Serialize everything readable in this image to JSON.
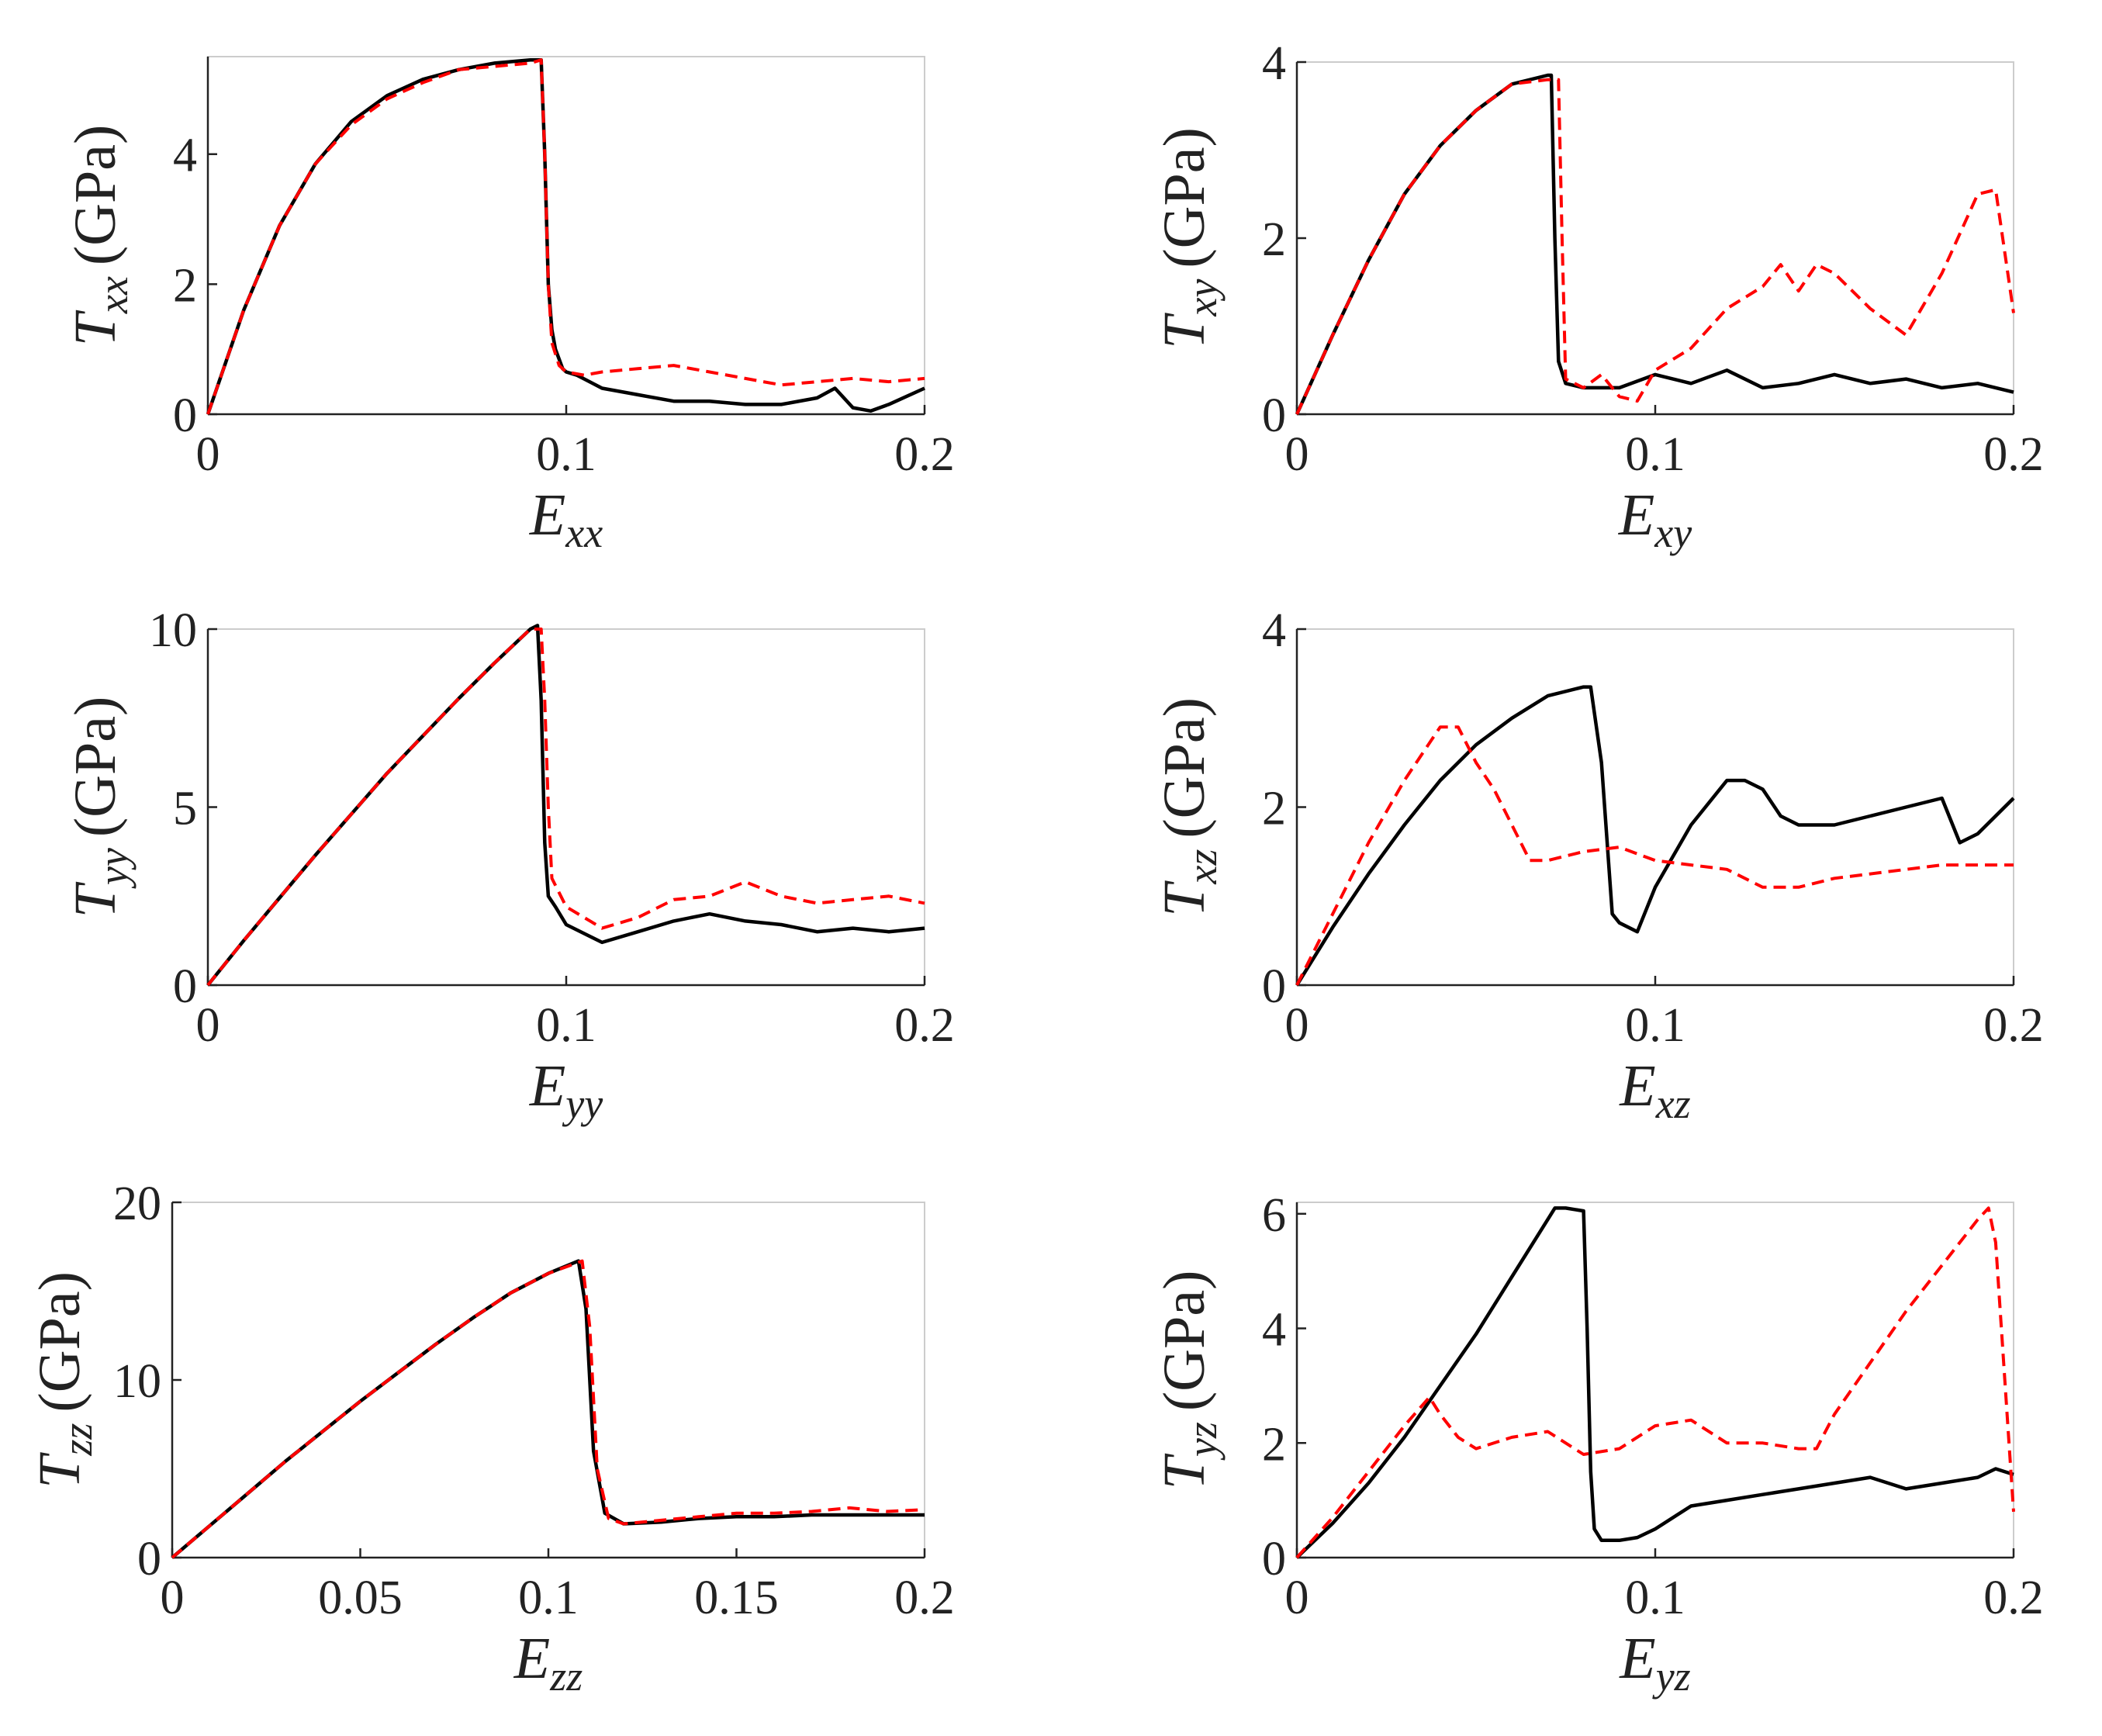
{
  "colors": {
    "solid": "#000000",
    "dashed": "#ff0000"
  },
  "chart_data": [
    {
      "type": "line",
      "xlabel": {
        "main": "E",
        "sub": "xx"
      },
      "ylabel": {
        "main": "T",
        "sub": "xx",
        "unit": "(GPa)"
      },
      "xlim": [
        0,
        0.2
      ],
      "ylim": [
        0,
        5.5
      ],
      "xticks": [
        0,
        0.1,
        0.2
      ],
      "xtick_labels": [
        "0",
        "0.1",
        "0.2"
      ],
      "yticks": [
        0,
        2,
        4
      ],
      "ytick_labels": [
        "0",
        "2",
        "4"
      ],
      "series": [
        {
          "name": "solid",
          "style": "solid",
          "x": [
            0,
            0.01,
            0.02,
            0.03,
            0.04,
            0.05,
            0.06,
            0.07,
            0.08,
            0.09,
            0.093,
            0.094,
            0.095,
            0.096,
            0.097,
            0.099,
            0.1,
            0.103,
            0.11,
            0.12,
            0.13,
            0.14,
            0.15,
            0.16,
            0.17,
            0.175,
            0.18,
            0.185,
            0.19,
            0.2
          ],
          "y": [
            0,
            1.6,
            2.9,
            3.85,
            4.5,
            4.9,
            5.15,
            5.3,
            5.4,
            5.45,
            5.45,
            4.0,
            2.0,
            1.3,
            1.0,
            0.7,
            0.65,
            0.6,
            0.4,
            0.3,
            0.2,
            0.2,
            0.15,
            0.15,
            0.25,
            0.4,
            0.1,
            0.05,
            0.15,
            0.4
          ]
        },
        {
          "name": "dashed",
          "style": "dashed",
          "x": [
            0,
            0.01,
            0.02,
            0.03,
            0.04,
            0.05,
            0.06,
            0.07,
            0.08,
            0.09,
            0.093,
            0.094,
            0.095,
            0.096,
            0.098,
            0.1,
            0.105,
            0.11,
            0.12,
            0.13,
            0.14,
            0.15,
            0.16,
            0.17,
            0.18,
            0.19,
            0.2
          ],
          "y": [
            0,
            1.6,
            2.9,
            3.85,
            4.45,
            4.85,
            5.1,
            5.3,
            5.35,
            5.4,
            5.45,
            4.0,
            2.0,
            1.1,
            0.75,
            0.65,
            0.6,
            0.65,
            0.7,
            0.75,
            0.65,
            0.55,
            0.45,
            0.5,
            0.55,
            0.5,
            0.55
          ]
        }
      ]
    },
    {
      "type": "line",
      "xlabel": {
        "main": "E",
        "sub": "xy"
      },
      "ylabel": {
        "main": "T",
        "sub": "xy",
        "unit": "(GPa)"
      },
      "xlim": [
        0,
        0.2
      ],
      "ylim": [
        0,
        4
      ],
      "xticks": [
        0,
        0.1,
        0.2
      ],
      "xtick_labels": [
        "0",
        "0.1",
        "0.2"
      ],
      "yticks": [
        0,
        2,
        4
      ],
      "ytick_labels": [
        "0",
        "2",
        "4"
      ],
      "series": [
        {
          "name": "solid",
          "style": "solid",
          "x": [
            0,
            0.01,
            0.02,
            0.03,
            0.04,
            0.05,
            0.06,
            0.07,
            0.071,
            0.072,
            0.073,
            0.075,
            0.08,
            0.09,
            0.1,
            0.11,
            0.12,
            0.13,
            0.14,
            0.15,
            0.16,
            0.17,
            0.18,
            0.19,
            0.2
          ],
          "y": [
            0,
            0.9,
            1.75,
            2.5,
            3.05,
            3.45,
            3.75,
            3.85,
            3.85,
            2.0,
            0.6,
            0.35,
            0.3,
            0.3,
            0.45,
            0.35,
            0.5,
            0.3,
            0.35,
            0.45,
            0.35,
            0.4,
            0.3,
            0.35,
            0.25
          ]
        },
        {
          "name": "dashed",
          "style": "dashed",
          "x": [
            0,
            0.01,
            0.02,
            0.03,
            0.04,
            0.05,
            0.06,
            0.07,
            0.073,
            0.074,
            0.075,
            0.08,
            0.085,
            0.09,
            0.095,
            0.1,
            0.11,
            0.12,
            0.13,
            0.135,
            0.14,
            0.145,
            0.15,
            0.16,
            0.17,
            0.18,
            0.19,
            0.195,
            0.2
          ],
          "y": [
            0,
            0.9,
            1.75,
            2.5,
            3.05,
            3.45,
            3.75,
            3.8,
            3.8,
            2.0,
            0.4,
            0.3,
            0.45,
            0.2,
            0.15,
            0.5,
            0.75,
            1.2,
            1.45,
            1.7,
            1.4,
            1.7,
            1.6,
            1.2,
            0.9,
            1.6,
            2.5,
            2.55,
            1.15
          ]
        }
      ]
    },
    {
      "type": "line",
      "xlabel": {
        "main": "E",
        "sub": "yy"
      },
      "ylabel": {
        "main": "T",
        "sub": "yy",
        "unit": "(GPa)"
      },
      "xlim": [
        0,
        0.2
      ],
      "ylim": [
        0,
        10
      ],
      "xticks": [
        0,
        0.1,
        0.2
      ],
      "xtick_labels": [
        "0",
        "0.1",
        "0.2"
      ],
      "yticks": [
        0,
        5,
        10
      ],
      "ytick_labels": [
        "0",
        "5",
        "10"
      ],
      "series": [
        {
          "name": "solid",
          "style": "solid",
          "x": [
            0,
            0.01,
            0.02,
            0.03,
            0.04,
            0.05,
            0.06,
            0.07,
            0.08,
            0.09,
            0.092,
            0.093,
            0.094,
            0.095,
            0.097,
            0.1,
            0.11,
            0.12,
            0.13,
            0.14,
            0.15,
            0.16,
            0.17,
            0.18,
            0.19,
            0.2
          ],
          "y": [
            0,
            1.25,
            2.45,
            3.65,
            4.8,
            5.95,
            7.0,
            8.05,
            9.05,
            10.0,
            10.1,
            8.0,
            4.0,
            2.5,
            2.2,
            1.7,
            1.2,
            1.5,
            1.8,
            2.0,
            1.8,
            1.7,
            1.5,
            1.6,
            1.5,
            1.6
          ]
        },
        {
          "name": "dashed",
          "style": "dashed",
          "x": [
            0,
            0.01,
            0.02,
            0.03,
            0.04,
            0.05,
            0.06,
            0.07,
            0.08,
            0.09,
            0.093,
            0.094,
            0.095,
            0.096,
            0.098,
            0.1,
            0.11,
            0.12,
            0.13,
            0.14,
            0.15,
            0.16,
            0.17,
            0.18,
            0.19,
            0.2
          ],
          "y": [
            0,
            1.25,
            2.45,
            3.65,
            4.8,
            5.95,
            7.0,
            8.05,
            9.05,
            10.0,
            10.0,
            8.0,
            5.0,
            3.0,
            2.6,
            2.2,
            1.6,
            1.9,
            2.4,
            2.5,
            2.9,
            2.5,
            2.3,
            2.4,
            2.5,
            2.3
          ]
        }
      ]
    },
    {
      "type": "line",
      "xlabel": {
        "main": "E",
        "sub": "xz"
      },
      "ylabel": {
        "main": "T",
        "sub": "xz",
        "unit": "(GPa)"
      },
      "xlim": [
        0,
        0.2
      ],
      "ylim": [
        0,
        4
      ],
      "xticks": [
        0,
        0.1,
        0.2
      ],
      "xtick_labels": [
        "0",
        "0.1",
        "0.2"
      ],
      "yticks": [
        0,
        2,
        4
      ],
      "ytick_labels": [
        "0",
        "2",
        "4"
      ],
      "series": [
        {
          "name": "solid",
          "style": "solid",
          "x": [
            0,
            0.01,
            0.02,
            0.03,
            0.04,
            0.05,
            0.06,
            0.07,
            0.08,
            0.082,
            0.085,
            0.088,
            0.09,
            0.095,
            0.1,
            0.11,
            0.12,
            0.125,
            0.13,
            0.135,
            0.14,
            0.15,
            0.16,
            0.17,
            0.18,
            0.185,
            0.19,
            0.2
          ],
          "y": [
            0,
            0.65,
            1.25,
            1.8,
            2.3,
            2.7,
            3.0,
            3.25,
            3.35,
            3.35,
            2.5,
            0.8,
            0.7,
            0.6,
            1.1,
            1.8,
            2.3,
            2.3,
            2.2,
            1.9,
            1.8,
            1.8,
            1.9,
            2.0,
            2.1,
            1.6,
            1.7,
            2.1
          ]
        },
        {
          "name": "dashed",
          "style": "dashed",
          "x": [
            0,
            0.01,
            0.02,
            0.03,
            0.04,
            0.045,
            0.05,
            0.055,
            0.06,
            0.065,
            0.07,
            0.08,
            0.09,
            0.1,
            0.11,
            0.12,
            0.13,
            0.14,
            0.15,
            0.16,
            0.17,
            0.18,
            0.19,
            0.2
          ],
          "y": [
            0,
            0.8,
            1.6,
            2.3,
            2.9,
            2.9,
            2.5,
            2.2,
            1.8,
            1.4,
            1.4,
            1.5,
            1.55,
            1.4,
            1.35,
            1.3,
            1.1,
            1.1,
            1.2,
            1.25,
            1.3,
            1.35,
            1.35,
            1.35
          ]
        }
      ]
    },
    {
      "type": "line",
      "xlabel": {
        "main": "E",
        "sub": "zz"
      },
      "ylabel": {
        "main": "T",
        "sub": "zz",
        "unit": "(GPa)"
      },
      "xlim": [
        0,
        0.2
      ],
      "ylim": [
        0,
        20
      ],
      "xticks": [
        0,
        0.05,
        0.1,
        0.15,
        0.2
      ],
      "xtick_labels": [
        "0",
        "0.05",
        "0.1",
        "0.15",
        "0.2"
      ],
      "yticks": [
        0,
        10,
        20
      ],
      "ytick_labels": [
        "0",
        "10",
        "20"
      ],
      "series": [
        {
          "name": "solid",
          "style": "solid",
          "x": [
            0,
            0.01,
            0.02,
            0.03,
            0.04,
            0.05,
            0.06,
            0.07,
            0.08,
            0.09,
            0.1,
            0.108,
            0.11,
            0.112,
            0.115,
            0.12,
            0.13,
            0.14,
            0.15,
            0.16,
            0.17,
            0.18,
            0.19,
            0.2
          ],
          "y": [
            0,
            1.8,
            3.6,
            5.4,
            7.1,
            8.8,
            10.4,
            12.0,
            13.5,
            14.9,
            16.0,
            16.7,
            14.0,
            6.0,
            2.5,
            1.9,
            2.0,
            2.2,
            2.3,
            2.3,
            2.4,
            2.4,
            2.4,
            2.4
          ]
        },
        {
          "name": "dashed",
          "style": "dashed",
          "x": [
            0,
            0.01,
            0.02,
            0.03,
            0.04,
            0.05,
            0.06,
            0.07,
            0.08,
            0.09,
            0.1,
            0.109,
            0.111,
            0.113,
            0.116,
            0.12,
            0.13,
            0.14,
            0.15,
            0.16,
            0.17,
            0.18,
            0.19,
            0.2
          ],
          "y": [
            0,
            1.8,
            3.6,
            5.4,
            7.1,
            8.8,
            10.4,
            12.0,
            13.5,
            14.9,
            16.0,
            16.7,
            13.0,
            5.0,
            2.2,
            1.9,
            2.1,
            2.3,
            2.5,
            2.5,
            2.6,
            2.8,
            2.6,
            2.7
          ]
        }
      ]
    },
    {
      "type": "line",
      "xlabel": {
        "main": "E",
        "sub": "yz"
      },
      "ylabel": {
        "main": "T",
        "sub": "yz",
        "unit": "(GPa)"
      },
      "xlim": [
        0,
        0.2
      ],
      "ylim": [
        0,
        6.2
      ],
      "xticks": [
        0,
        0.1,
        0.2
      ],
      "xtick_labels": [
        "0",
        "0.1",
        "0.2"
      ],
      "yticks": [
        0,
        2,
        4,
        6
      ],
      "ytick_labels": [
        "0",
        "2",
        "4",
        "6"
      ],
      "series": [
        {
          "name": "solid",
          "style": "solid",
          "x": [
            0,
            0.01,
            0.02,
            0.03,
            0.04,
            0.05,
            0.06,
            0.07,
            0.072,
            0.075,
            0.08,
            0.081,
            0.082,
            0.083,
            0.085,
            0.09,
            0.095,
            0.1,
            0.11,
            0.12,
            0.13,
            0.14,
            0.15,
            0.16,
            0.17,
            0.18,
            0.19,
            0.195,
            0.2
          ],
          "y": [
            0,
            0.6,
            1.3,
            2.1,
            3.0,
            3.9,
            4.9,
            5.9,
            6.1,
            6.1,
            6.05,
            4.0,
            1.5,
            0.5,
            0.3,
            0.3,
            0.35,
            0.5,
            0.9,
            1.0,
            1.1,
            1.2,
            1.3,
            1.4,
            1.2,
            1.3,
            1.4,
            1.55,
            1.45
          ]
        },
        {
          "name": "dashed",
          "style": "dashed",
          "x": [
            0,
            0.01,
            0.02,
            0.03,
            0.037,
            0.04,
            0.045,
            0.05,
            0.06,
            0.07,
            0.08,
            0.09,
            0.1,
            0.11,
            0.12,
            0.13,
            0.14,
            0.145,
            0.15,
            0.16,
            0.17,
            0.18,
            0.19,
            0.193,
            0.195,
            0.2
          ],
          "y": [
            0,
            0.7,
            1.5,
            2.3,
            2.8,
            2.5,
            2.1,
            1.9,
            2.1,
            2.2,
            1.8,
            1.9,
            2.3,
            2.4,
            2.0,
            2.0,
            1.9,
            1.9,
            2.5,
            3.4,
            4.3,
            5.1,
            5.9,
            6.1,
            5.5,
            0.8
          ]
        }
      ]
    }
  ]
}
